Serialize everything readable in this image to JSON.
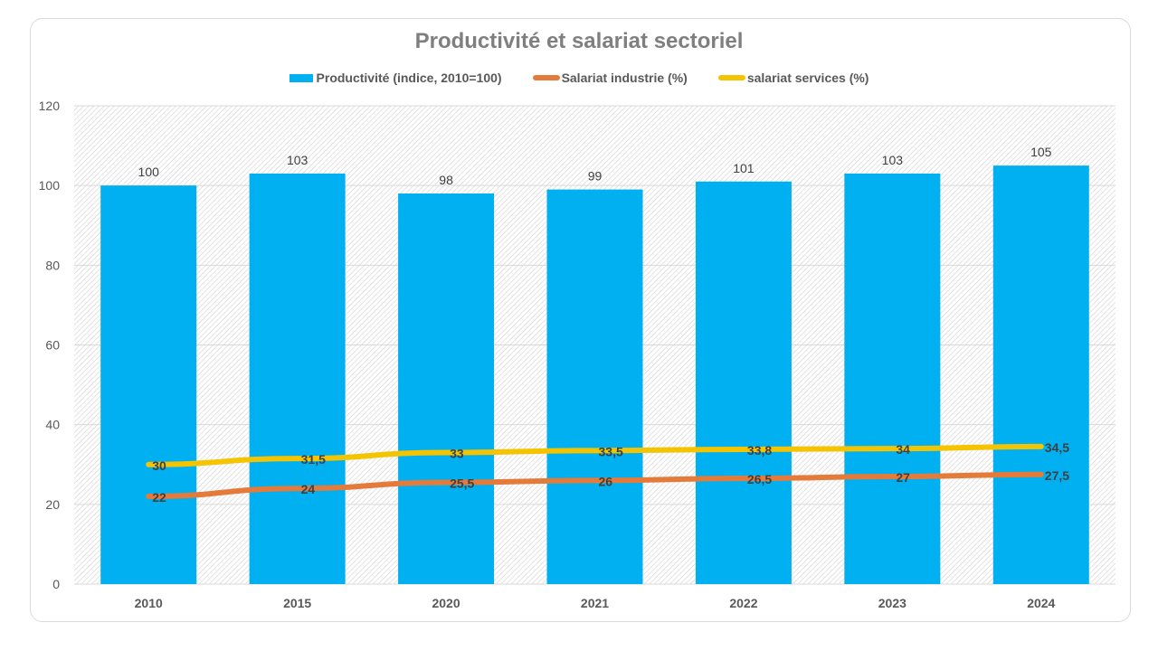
{
  "chart_data": {
    "type": "bar+line",
    "title": "Productivité et salariat sectoriel",
    "categories": [
      "2010",
      "2015",
      "2020",
      "2021",
      "2022",
      "2023",
      "2024"
    ],
    "series": [
      {
        "name": "Productivité (indice, 2010=100)",
        "type": "bar",
        "color": "#00B0F0",
        "values": [
          100,
          103,
          98,
          99,
          101,
          103,
          105
        ],
        "labels": [
          "100",
          "103",
          "98",
          "99",
          "101",
          "103",
          "105"
        ]
      },
      {
        "name": "Salariat industrie (%)",
        "type": "line",
        "color": "#E57B3A",
        "values": [
          22,
          24,
          25.5,
          26,
          26.5,
          27,
          27.5
        ],
        "labels": [
          "22",
          "24",
          "25,5",
          "26",
          "26,5",
          "27",
          "27,5"
        ]
      },
      {
        "name": "salariat services (%)",
        "type": "line",
        "color": "#F5C400",
        "values": [
          30,
          31.5,
          33,
          33.5,
          33.8,
          34,
          34.5
        ],
        "labels": [
          "30",
          "31,5",
          "33",
          "33,5",
          "33,8",
          "34",
          "34,5"
        ]
      }
    ],
    "ylim": [
      0,
      120
    ],
    "yticks": [
      "0",
      "20",
      "40",
      "60",
      "80",
      "100",
      "120"
    ],
    "grid": true,
    "plot_background": "hatched",
    "legend_position": "top"
  }
}
